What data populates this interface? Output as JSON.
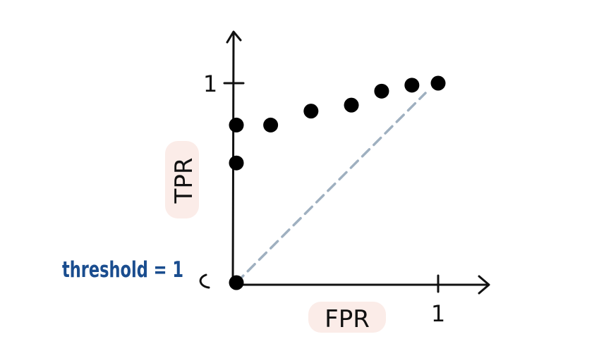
{
  "chart_data": {
    "type": "scatter",
    "xlabel": "FPR",
    "ylabel": "TPR",
    "xlim": [
      0,
      1
    ],
    "ylim": [
      0,
      1
    ],
    "x_ticks": [
      "1"
    ],
    "y_ticks": [
      "1"
    ],
    "points": [
      {
        "x": 0.0,
        "y": 0.0
      },
      {
        "x": 0.0,
        "y": 0.6
      },
      {
        "x": 0.0,
        "y": 0.79
      },
      {
        "x": 0.17,
        "y": 0.79
      },
      {
        "x": 0.37,
        "y": 0.86
      },
      {
        "x": 0.57,
        "y": 0.89
      },
      {
        "x": 0.72,
        "y": 0.96
      },
      {
        "x": 0.87,
        "y": 0.99
      },
      {
        "x": 1.0,
        "y": 1.0
      }
    ],
    "reference_line": {
      "from": [
        0,
        0
      ],
      "to": [
        1,
        1
      ],
      "style": "dashed"
    },
    "annotation": {
      "text": "threshold = 1",
      "target_point": 0
    },
    "grid": false,
    "legend": "none"
  },
  "colors": {
    "axis": "#111111",
    "points": "#000000",
    "diagonal": "#9fb0c0",
    "annotation": "#1a4d8f",
    "label_highlight": "#fbece8"
  }
}
